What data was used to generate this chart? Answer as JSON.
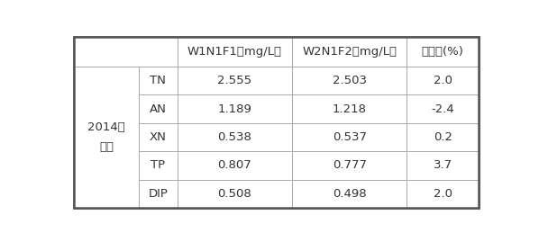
{
  "col_headers": [
    "",
    "W1N1F1（mg/L）",
    "W2N1F2（mg/L）",
    "削减率(%)"
  ],
  "row_label_group_line1": "2014年",
  "row_label_group_line2": "早稼",
  "row_labels": [
    "TN",
    "AN",
    "XN",
    "TP",
    "DIP"
  ],
  "col1_values": [
    "2.555",
    "1.189",
    "0.538",
    "0.807",
    "0.508"
  ],
  "col2_values": [
    "2.503",
    "1.218",
    "0.537",
    "0.777",
    "0.498"
  ],
  "col3_values": [
    "2.0",
    "-2.4",
    "0.2",
    "3.7",
    "2.0"
  ],
  "bg_color": "#ffffff",
  "outer_border_color": "#555555",
  "inner_border_color": "#aaaaaa",
  "text_color": "#333333",
  "cell_fontsize": 9.5,
  "group_label_fontsize": 9.5,
  "figwidth": 5.98,
  "figheight": 2.69,
  "dpi": 100
}
